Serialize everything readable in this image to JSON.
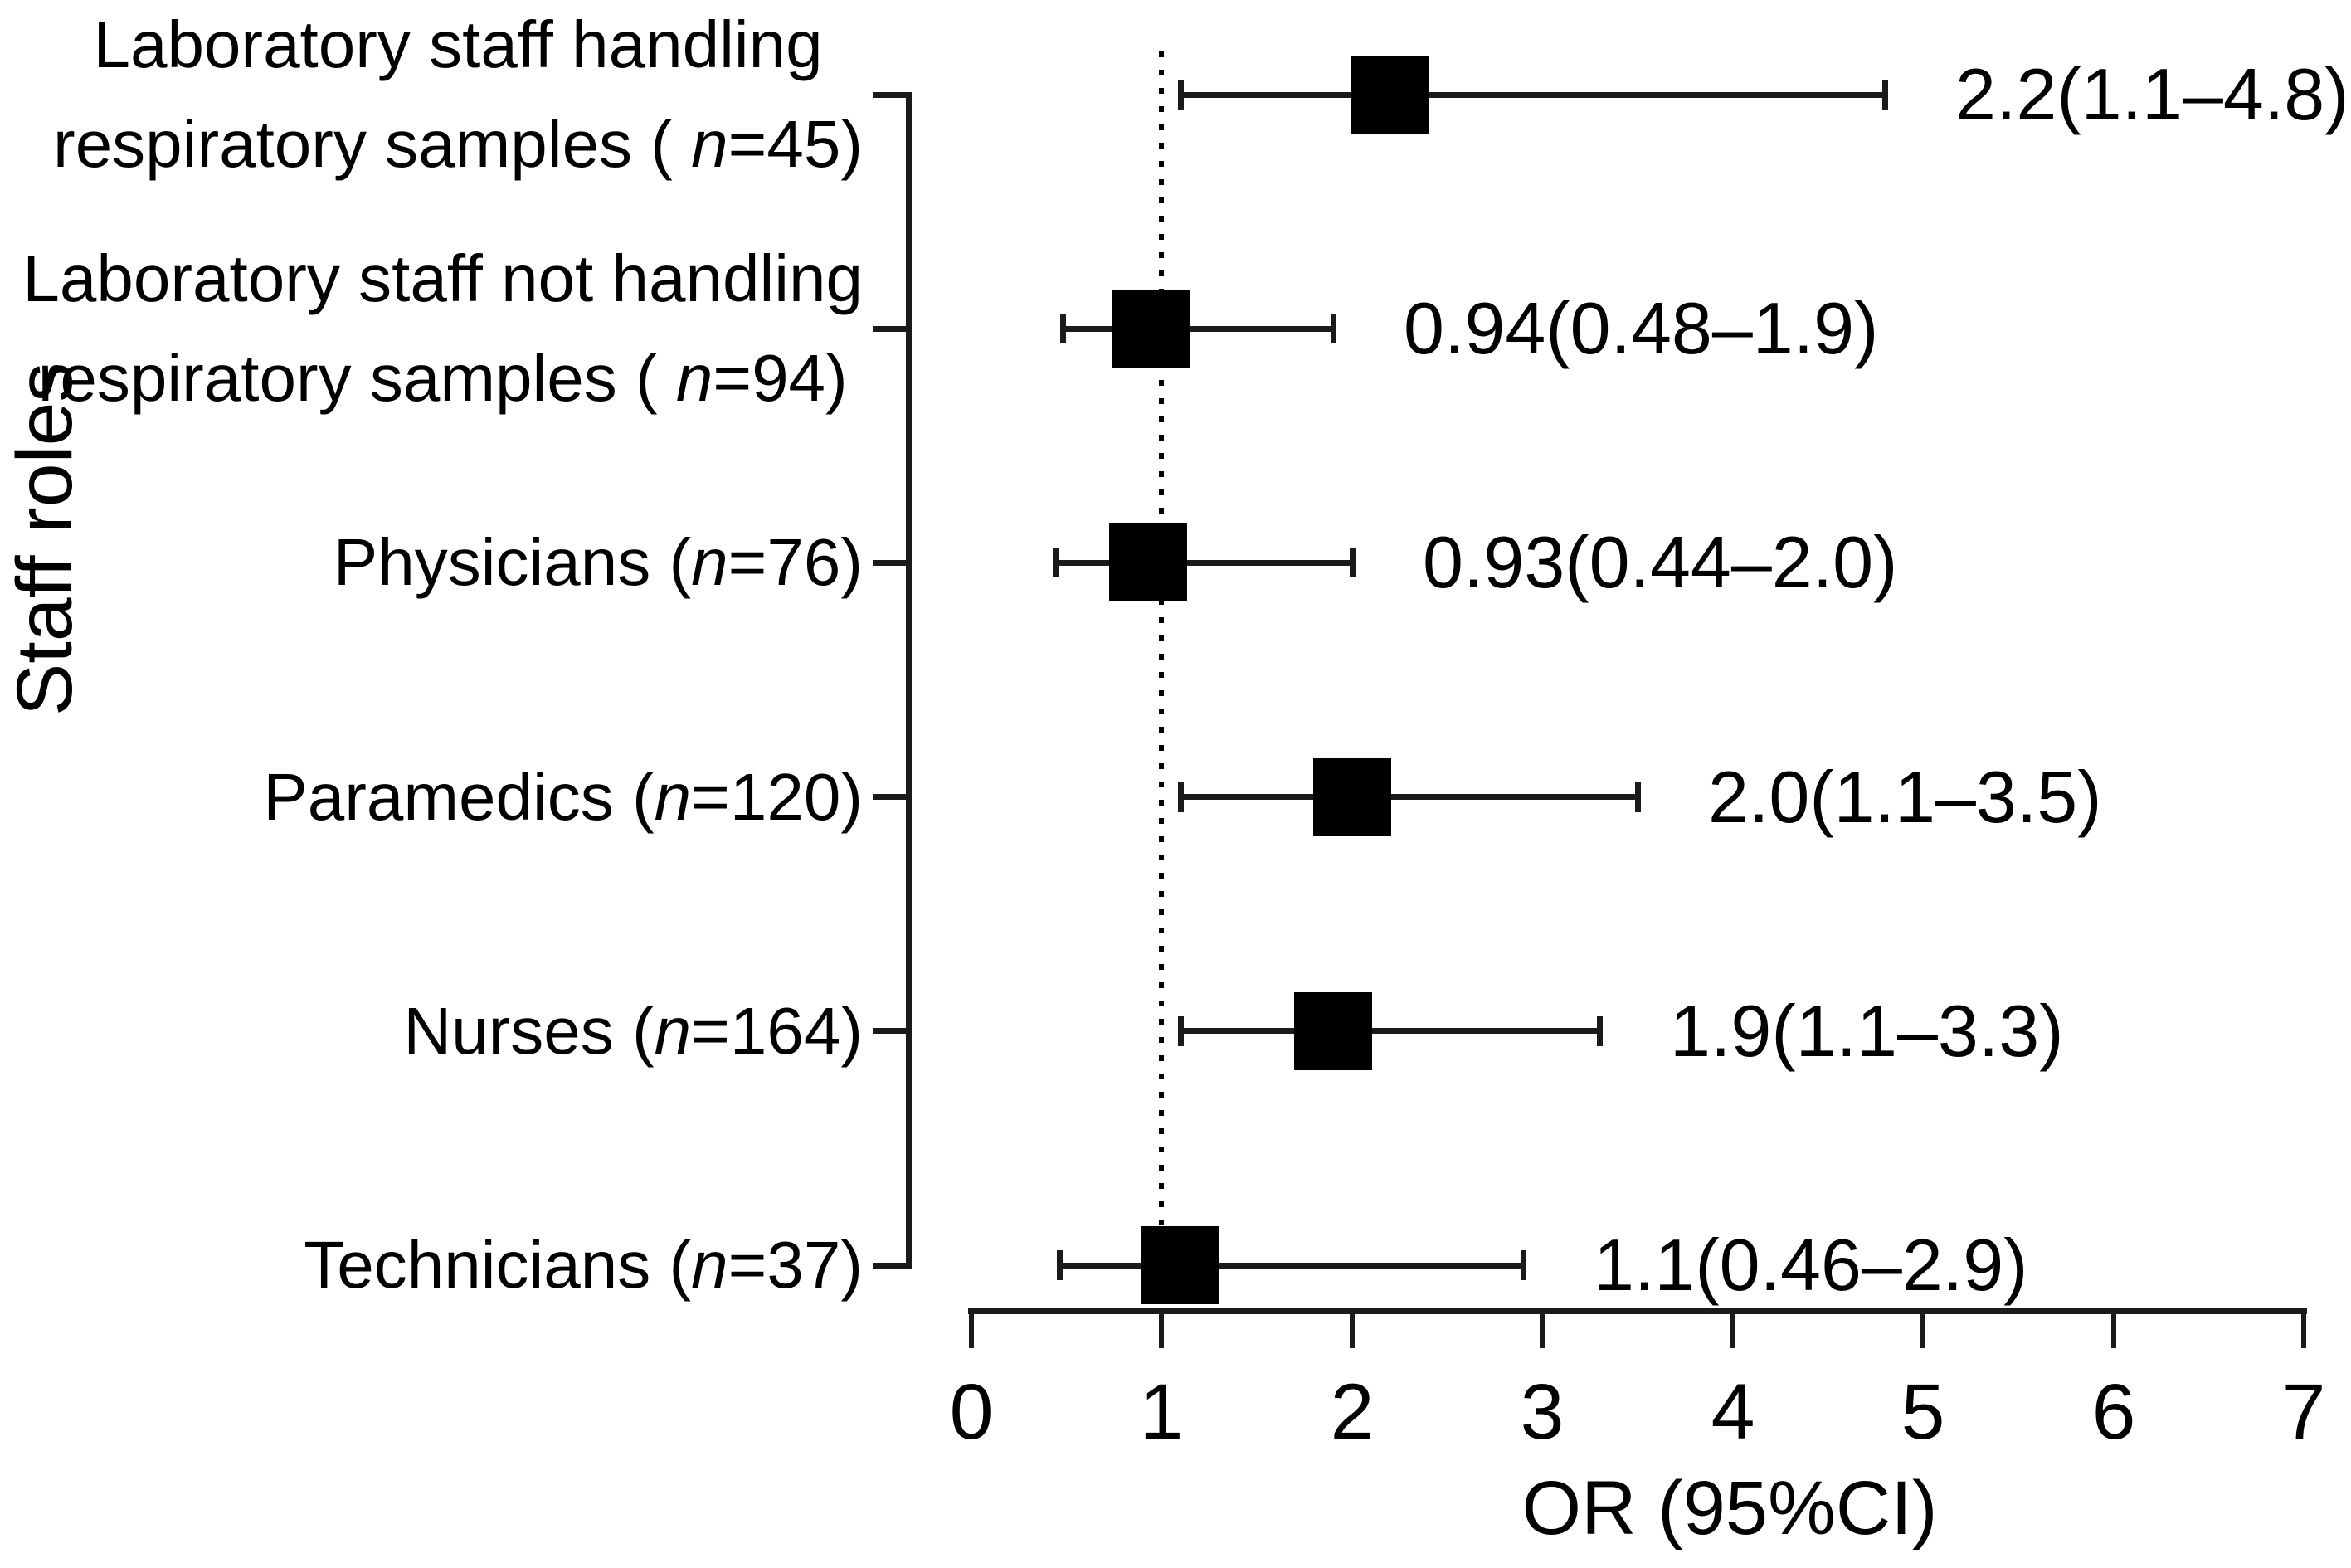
{
  "chart_data": {
    "type": "forest",
    "title": "",
    "xlabel": "OR (95%CI)",
    "ylabel": "Staff roles",
    "xlim": [
      0,
      7
    ],
    "x_ticks": [
      0,
      1,
      2,
      3,
      4,
      5,
      6,
      7
    ],
    "reference_line_x": 1,
    "grid": false,
    "legend": null,
    "marker": "black-square",
    "rows": [
      {
        "label_lines": [
          "Laboratory staff handling",
          "respiratory samples ( n=45)"
        ],
        "n": 45,
        "or": 2.2,
        "ci_low": 1.1,
        "ci_high": 4.8,
        "ci_label": "2.2(1.1–4.8)"
      },
      {
        "label_lines": [
          "Laboratory staff not handling",
          "respiratory samples ( n=94)"
        ],
        "n": 94,
        "or": 0.94,
        "ci_low": 0.48,
        "ci_high": 1.9,
        "ci_label": "0.94(0.48–1.9)"
      },
      {
        "label_lines": [
          "Physicians (n=76)"
        ],
        "n": 76,
        "or": 0.93,
        "ci_low": 0.44,
        "ci_high": 2.0,
        "ci_label": "0.93(0.44–2.0)"
      },
      {
        "label_lines": [
          "Paramedics (n=120)"
        ],
        "n": 120,
        "or": 2.0,
        "ci_low": 1.1,
        "ci_high": 3.5,
        "ci_label": "2.0(1.1–3.5)"
      },
      {
        "label_lines": [
          "Nurses (n=164)"
        ],
        "n": 164,
        "or": 1.9,
        "ci_low": 1.1,
        "ci_high": 3.3,
        "ci_label": "1.9(1.1–3.3)"
      },
      {
        "label_lines": [
          "Technicians (n=37)"
        ],
        "n": 37,
        "or": 1.1,
        "ci_low": 0.46,
        "ci_high": 2.9,
        "ci_label": "1.1(0.46–2.9)"
      }
    ]
  }
}
